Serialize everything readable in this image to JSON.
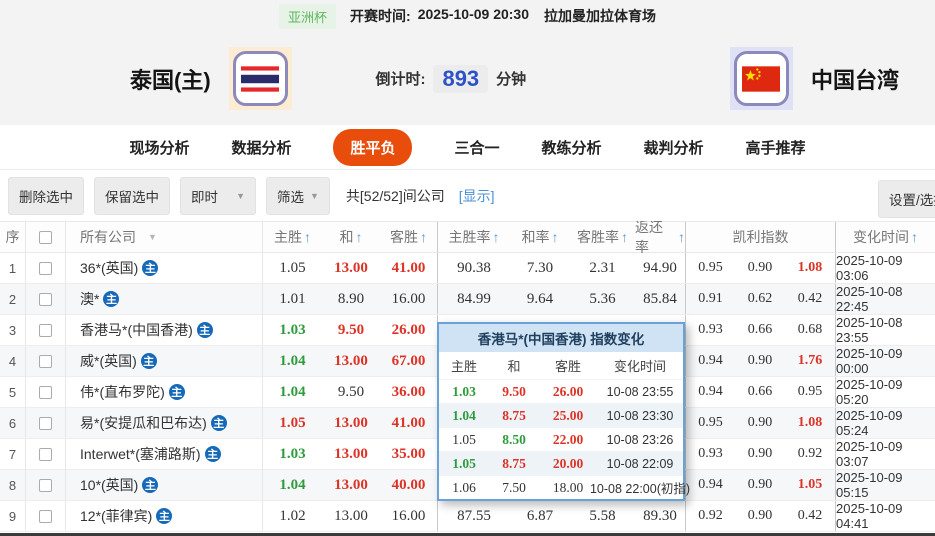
{
  "top_bar": {
    "league": "亚洲杯",
    "kickoff_label": "开赛时间:",
    "kickoff_time": "2025-10-09 20:30",
    "venue": "拉加曼加拉体育场"
  },
  "match": {
    "home_team": "泰国(主)",
    "away_team": "中国台湾",
    "countdown_label": "倒计时:",
    "countdown_value": "893",
    "countdown_unit": "分钟"
  },
  "tabs": [
    {
      "label": "现场分析",
      "active": false
    },
    {
      "label": "数据分析",
      "active": false
    },
    {
      "label": "胜平负",
      "active": true
    },
    {
      "label": "三合一",
      "active": false
    },
    {
      "label": "教练分析",
      "active": false
    },
    {
      "label": "裁判分析",
      "active": false
    },
    {
      "label": "高手推荐",
      "active": false
    }
  ],
  "toolbar": {
    "delete_selected": "删除选中",
    "keep_selected": "保留选中",
    "instant": "即时",
    "filter": "筛选",
    "company_count": "共[52/52]间公司",
    "show_link": "[显示]",
    "settings": "设置/选择"
  },
  "table": {
    "headers": {
      "seq": "序",
      "company": "所有公司",
      "home": "主胜",
      "draw": "和",
      "away": "客胜",
      "home_rate": "主胜率",
      "draw_rate": "和率",
      "away_rate": "客胜率",
      "return_rate": "返还率",
      "kelly": "凯利指数",
      "time": "变化时间"
    },
    "rows": [
      {
        "seq": "1",
        "company": "36*(英国)",
        "badge": "主",
        "odds": [
          {
            "v": "1.05",
            "c": "dark"
          },
          {
            "v": "13.00",
            "c": "red"
          },
          {
            "v": "41.00",
            "c": "red"
          }
        ],
        "rates": [
          "90.38",
          "7.30",
          "2.31",
          "94.90"
        ],
        "kelly": [
          {
            "v": "0.95",
            "c": "dark"
          },
          {
            "v": "0.90",
            "c": "dark"
          },
          {
            "v": "1.08",
            "c": "red"
          }
        ],
        "time": "2025-10-09 03:06"
      },
      {
        "seq": "2",
        "company": "澳*",
        "badge": "主",
        "odds": [
          {
            "v": "1.01",
            "c": "dark"
          },
          {
            "v": "8.90",
            "c": "dark"
          },
          {
            "v": "16.00",
            "c": "dark"
          }
        ],
        "rates": [
          "84.99",
          "9.64",
          "5.36",
          "85.84"
        ],
        "kelly": [
          {
            "v": "0.91",
            "c": "dark"
          },
          {
            "v": "0.62",
            "c": "dark"
          },
          {
            "v": "0.42",
            "c": "dark"
          }
        ],
        "time": "2025-10-08 22:45"
      },
      {
        "seq": "3",
        "company": "香港马*(中国香港)",
        "badge": "主",
        "odds": [
          {
            "v": "1.03",
            "c": "green"
          },
          {
            "v": "9.50",
            "c": "red"
          },
          {
            "v": "26.00",
            "c": "red"
          }
        ],
        "rates": [
          "",
          "",
          "",
          ""
        ],
        "kelly": [
          {
            "v": "0.93",
            "c": "dark"
          },
          {
            "v": "0.66",
            "c": "dark"
          },
          {
            "v": "0.68",
            "c": "dark"
          }
        ],
        "time": "2025-10-08 23:55"
      },
      {
        "seq": "4",
        "company": "威*(英国)",
        "badge": "主",
        "odds": [
          {
            "v": "1.04",
            "c": "green"
          },
          {
            "v": "13.00",
            "c": "red"
          },
          {
            "v": "67.00",
            "c": "red"
          }
        ],
        "rates": [
          "",
          "",
          "",
          ""
        ],
        "kelly": [
          {
            "v": "0.94",
            "c": "dark"
          },
          {
            "v": "0.90",
            "c": "dark"
          },
          {
            "v": "1.76",
            "c": "red"
          }
        ],
        "time": "2025-10-09 00:00"
      },
      {
        "seq": "5",
        "company": "伟*(直布罗陀)",
        "badge": "主",
        "odds": [
          {
            "v": "1.04",
            "c": "green"
          },
          {
            "v": "9.50",
            "c": "dark"
          },
          {
            "v": "36.00",
            "c": "red"
          }
        ],
        "rates": [
          "",
          "",
          "",
          ""
        ],
        "kelly": [
          {
            "v": "0.94",
            "c": "dark"
          },
          {
            "v": "0.66",
            "c": "dark"
          },
          {
            "v": "0.95",
            "c": "dark"
          }
        ],
        "time": "2025-10-09 05:20"
      },
      {
        "seq": "6",
        "company": "易*(安提瓜和巴布达)",
        "badge": "主",
        "odds": [
          {
            "v": "1.05",
            "c": "red"
          },
          {
            "v": "13.00",
            "c": "red"
          },
          {
            "v": "41.00",
            "c": "red"
          }
        ],
        "rates": [
          "",
          "",
          "",
          ""
        ],
        "kelly": [
          {
            "v": "0.95",
            "c": "dark"
          },
          {
            "v": "0.90",
            "c": "dark"
          },
          {
            "v": "1.08",
            "c": "red"
          }
        ],
        "time": "2025-10-09 05:24"
      },
      {
        "seq": "7",
        "company": "Interwet*(塞浦路斯)",
        "badge": "主",
        "odds": [
          {
            "v": "1.03",
            "c": "green"
          },
          {
            "v": "13.00",
            "c": "red"
          },
          {
            "v": "35.00",
            "c": "red"
          }
        ],
        "rates": [
          "",
          "",
          "",
          ""
        ],
        "kelly": [
          {
            "v": "0.93",
            "c": "dark"
          },
          {
            "v": "0.90",
            "c": "dark"
          },
          {
            "v": "0.92",
            "c": "dark"
          }
        ],
        "time": "2025-10-09 03:07"
      },
      {
        "seq": "8",
        "company": "10*(英国)",
        "badge": "主",
        "odds": [
          {
            "v": "1.04",
            "c": "green"
          },
          {
            "v": "13.00",
            "c": "red"
          },
          {
            "v": "40.00",
            "c": "red"
          }
        ],
        "rates": [
          "",
          "",
          "",
          ""
        ],
        "kelly": [
          {
            "v": "0.94",
            "c": "dark"
          },
          {
            "v": "0.90",
            "c": "dark"
          },
          {
            "v": "1.05",
            "c": "red"
          }
        ],
        "time": "2025-10-09 05:15"
      },
      {
        "seq": "9",
        "company": "12*(菲律宾)",
        "badge": "主",
        "odds": [
          {
            "v": "1.02",
            "c": "dark"
          },
          {
            "v": "13.00",
            "c": "dark"
          },
          {
            "v": "16.00",
            "c": "dark"
          }
        ],
        "rates": [
          "87.55",
          "6.87",
          "5.58",
          "89.30"
        ],
        "kelly": [
          {
            "v": "0.92",
            "c": "dark"
          },
          {
            "v": "0.90",
            "c": "dark"
          },
          {
            "v": "0.42",
            "c": "dark"
          }
        ],
        "time": "2025-10-09 04:41"
      }
    ]
  },
  "popup": {
    "title": "香港马*(中国香港) 指数变化",
    "headers": [
      "主胜",
      "和",
      "客胜",
      "变化时间"
    ],
    "rows": [
      {
        "home": {
          "v": "1.03",
          "c": "green"
        },
        "draw": {
          "v": "9.50",
          "c": "red"
        },
        "away": {
          "v": "26.00",
          "c": "red"
        },
        "time": "10-08 23:55"
      },
      {
        "home": {
          "v": "1.04",
          "c": "green"
        },
        "draw": {
          "v": "8.75",
          "c": "red"
        },
        "away": {
          "v": "25.00",
          "c": "red"
        },
        "time": "10-08 23:30"
      },
      {
        "home": {
          "v": "1.05",
          "c": "dark"
        },
        "draw": {
          "v": "8.50",
          "c": "green"
        },
        "away": {
          "v": "22.00",
          "c": "red"
        },
        "time": "10-08 23:26"
      },
      {
        "home": {
          "v": "1.05",
          "c": "green"
        },
        "draw": {
          "v": "8.75",
          "c": "red"
        },
        "away": {
          "v": "20.00",
          "c": "red"
        },
        "time": "10-08 22:09"
      },
      {
        "home": {
          "v": "1.06",
          "c": "dark"
        },
        "draw": {
          "v": "7.50",
          "c": "dark"
        },
        "away": {
          "v": "18.00",
          "c": "dark"
        },
        "time": "10-08 22:00(初指)"
      }
    ]
  },
  "colors": {
    "accent_tab": "#e94d0c",
    "value_red": "#dd3327",
    "value_green": "#2e9c3c",
    "link_blue": "#4a90d9",
    "badge_blue": "#1569b8",
    "countdown_blue": "#2c52c8",
    "league_green": "#61b861"
  }
}
